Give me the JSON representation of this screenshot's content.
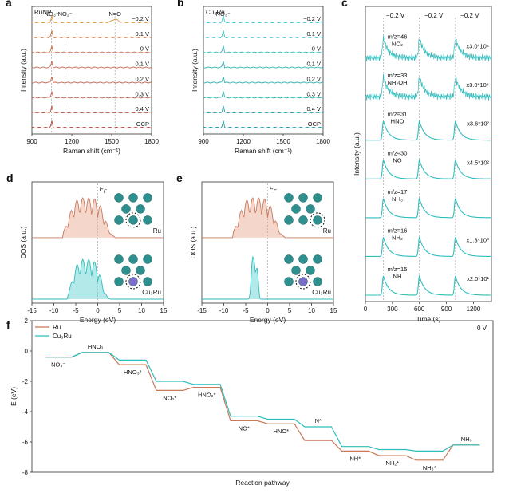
{
  "colors": {
    "ru": "#c9785a",
    "ru_fill": "#e6a48c",
    "cu": "#2ebdbd",
    "cu_fill": "#57cfcc",
    "axis": "#333333",
    "grid": "#999999",
    "atom_teal": "#2e8f8f",
    "atom_purple": "#7a6ec9"
  },
  "chart_data": [
    {
      "panel": "a",
      "type": "line",
      "sample": "RuNP",
      "xlabel": "Raman shift (cm⁻¹)",
      "ylabel": "Intensity (a.u.)",
      "xlim": [
        900,
        1800
      ],
      "xticks": [
        "900",
        "1200",
        "1500",
        "1800"
      ],
      "peak_labels": [
        {
          "text": "NO₃⁻",
          "x": 1048
        },
        {
          "text": "NO₂⁻",
          "x": 1150
        },
        {
          "text": "N=O",
          "x": 1525
        }
      ],
      "series": [
        {
          "name": "−0.2 V",
          "color": "#d9953f",
          "peaks": [
            1048,
            1525
          ]
        },
        {
          "name": "−0.1 V",
          "color": "#c97a4f",
          "peaks": [
            1048
          ]
        },
        {
          "name": "0 V",
          "color": "#c47250",
          "peaks": [
            1048
          ]
        },
        {
          "name": "0.1 V",
          "color": "#c26a4f",
          "peaks": [
            1048
          ]
        },
        {
          "name": "0.2 V",
          "color": "#bf624d",
          "peaks": [
            1048
          ]
        },
        {
          "name": "0.3 V",
          "color": "#bb5a4b",
          "peaks": [
            1048
          ]
        },
        {
          "name": "0.4 V",
          "color": "#b8524a",
          "peaks": [
            1048
          ]
        },
        {
          "name": "OCP",
          "color": "#b54a48",
          "peaks": [
            1048
          ]
        }
      ]
    },
    {
      "panel": "b",
      "type": "line",
      "sample": "Cu₃Ru",
      "xlabel": "Raman shift (cm⁻¹)",
      "ylabel": "Intensity (a.u.)",
      "xlim": [
        900,
        1800
      ],
      "xticks": [
        "900",
        "1200",
        "1500",
        "1800"
      ],
      "peak_labels": [
        {
          "text": "NO₃⁻",
          "x": 1048
        }
      ],
      "series": [
        {
          "name": "−0.2 V",
          "color": "#3fc6c6",
          "peaks": [
            1048
          ]
        },
        {
          "name": "−0.1 V",
          "color": "#3ac0c0",
          "peaks": [
            1048
          ]
        },
        {
          "name": "0 V",
          "color": "#35b9b9",
          "peaks": [
            1048
          ]
        },
        {
          "name": "0.1 V",
          "color": "#30b3b3",
          "peaks": [
            1048
          ]
        },
        {
          "name": "0.2 V",
          "color": "#2bacac",
          "peaks": [
            1048
          ]
        },
        {
          "name": "0.3 V",
          "color": "#26a6a6",
          "peaks": [
            1048
          ]
        },
        {
          "name": "0.4 V",
          "color": "#219f9f",
          "peaks": [
            1048
          ]
        },
        {
          "name": "OCP",
          "color": "#1c9999",
          "peaks": [
            1048
          ]
        }
      ]
    },
    {
      "panel": "c",
      "type": "line",
      "xlabel": "Time (s)",
      "ylabel": "Intensity (a.u.)",
      "xlim": [
        0,
        1400
      ],
      "xticks": [
        "0",
        "300",
        "600",
        "900",
        "1200"
      ],
      "pulse_times": [
        200,
        600,
        1000
      ],
      "pulse_labels": [
        "−0.2 V",
        "−0.2 V",
        "−0.2 V"
      ],
      "series": [
        {
          "mz": "m/z=46",
          "species": "NO₂",
          "scale": "x3.0*10⁴",
          "noisy": true
        },
        {
          "mz": "m/z=33",
          "species": "NH₂OH",
          "scale": "x3.0*10⁴",
          "noisy": true
        },
        {
          "mz": "m/z=31",
          "species": "HNO",
          "scale": "x3.6*10²",
          "noisy": false
        },
        {
          "mz": "m/z=30",
          "species": "NO",
          "scale": "x4.5*10²",
          "noisy": false
        },
        {
          "mz": "m/z=17",
          "species": "NH₃",
          "scale": "",
          "noisy": false
        },
        {
          "mz": "m/z=16",
          "species": "NH₂",
          "scale": "x1.3*10⁰",
          "noisy": false
        },
        {
          "mz": "m/z=15",
          "species": "NH",
          "scale": "x2.0*10¹",
          "noisy": false
        }
      ]
    },
    {
      "panel": "d",
      "type": "area",
      "xlabel": "Energy (eV)",
      "ylabel": "DOS (a.u.)",
      "xlim": [
        -15,
        15
      ],
      "xticks": [
        "-15",
        "-10",
        "-5",
        "0",
        "5",
        "10",
        "15"
      ],
      "fermi_label": "E_F",
      "series": [
        {
          "name": "Ru",
          "peak_center": -2.5,
          "span": [
            -7,
            3
          ]
        },
        {
          "name": "Cu₃Ru",
          "peak_center": -2.5,
          "span": [
            -6,
            2
          ]
        }
      ]
    },
    {
      "panel": "e",
      "type": "area",
      "xlabel": "Energy (eV)",
      "ylabel": "DOS (a.u.)",
      "xlim": [
        -15,
        15
      ],
      "xticks": [
        "-15",
        "-10",
        "-5",
        "0",
        "5",
        "10",
        "15"
      ],
      "fermi_label": "E_F",
      "series": [
        {
          "name": "Ru",
          "peak_center": -2.5,
          "span": [
            -7,
            3
          ]
        },
        {
          "name": "Cu₃Ru",
          "peak_center": -3,
          "span": [
            -4,
            -2
          ]
        }
      ]
    },
    {
      "panel": "f",
      "type": "line",
      "title": "0 V",
      "xlabel": "Reaction pathway",
      "ylabel": "E (eV)",
      "ylim": [
        -8,
        2
      ],
      "yticks": [
        "2",
        "0",
        "-2",
        "-4",
        "-6",
        "-8"
      ],
      "steps": [
        "NO₃⁻",
        "HNO₃",
        "HNO₃*",
        "NO₂*",
        "HNO₂*",
        "NO*",
        "HNO*",
        "N*",
        "NH*",
        "NH₂*",
        "NH₃*",
        "NH₃"
      ],
      "series": [
        {
          "name": "Ru",
          "color": "#c9785a",
          "values": [
            -0.4,
            -0.1,
            -0.9,
            -2.6,
            -2.4,
            -4.6,
            -4.8,
            -5.9,
            -6.6,
            -6.9,
            -7.2,
            -6.2
          ]
        },
        {
          "name": "Cu₃Ru",
          "color": "#2ebdbd",
          "values": [
            -0.4,
            -0.1,
            -0.6,
            -2.0,
            -2.2,
            -4.3,
            -4.5,
            -5.0,
            -6.3,
            -6.5,
            -6.6,
            -6.2
          ]
        }
      ]
    }
  ]
}
